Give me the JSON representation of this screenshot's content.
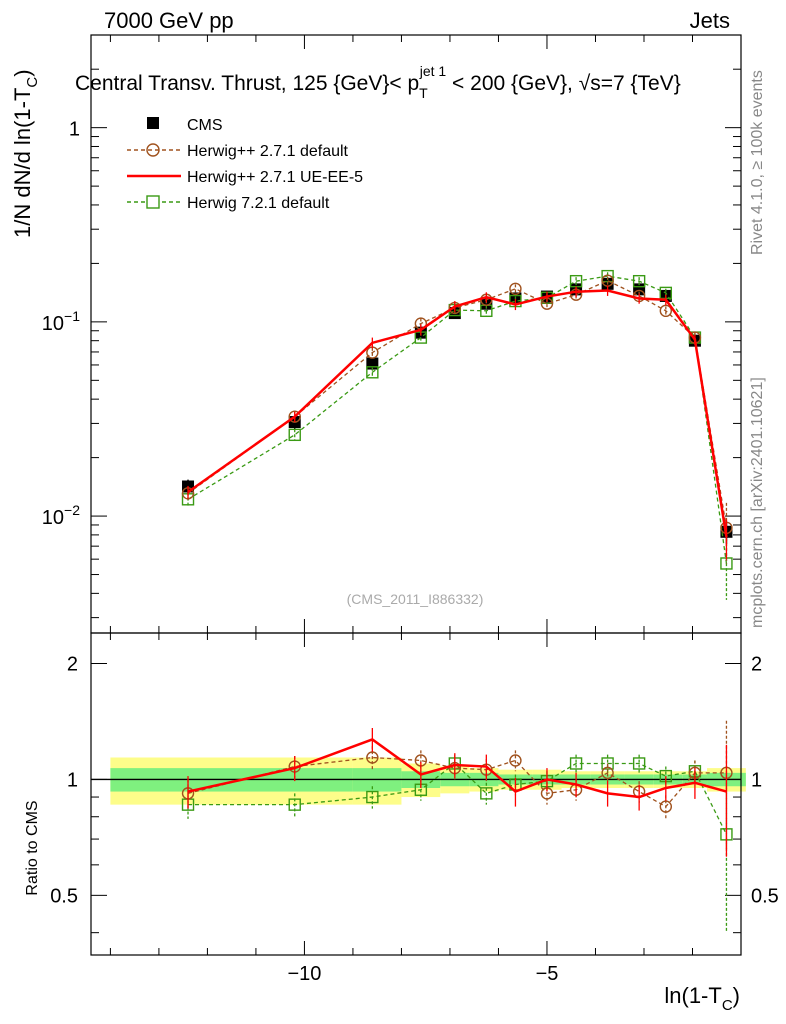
{
  "header": {
    "energy_label": "7000 GeV pp",
    "category_label": "Jets",
    "title_part1": "Central Transv. Thrust, 125 {GeV}< p",
    "title_sup": "jet 1",
    "title_sub": "T",
    "title_part2": " < 200 {GeV}, ",
    "title_sqrt": "√",
    "title_part3": "s=7 {TeV}"
  },
  "side_labels": {
    "rivet": "Rivet 4.1.0, ≥ 100k events",
    "mcplots": "mcplots.cern.ch [arXiv:2401.10621]"
  },
  "watermark": "(CMS_2011_I886332)",
  "axes": {
    "ylabel_main": "1/N   dN/d ln(1-T",
    "ylabel_main_sub": "C",
    "ylabel_main_close": ")",
    "ylabel_ratio": "Ratio to CMS",
    "xlabel": "ln(1-T",
    "xlabel_sub": "C",
    "xlabel_close": ")",
    "main_ticks": [
      {
        "mantissa": "10",
        "exp": "−2",
        "value": 0.01
      },
      {
        "mantissa": "10",
        "exp": "−1",
        "value": 0.1
      },
      {
        "mantissa": "1",
        "exp": "",
        "value": 1
      }
    ],
    "ratio_ticks": [
      {
        "label": "0.5",
        "value": 0.5
      },
      {
        "label": "1",
        "value": 1
      },
      {
        "label": "2",
        "value": 2
      }
    ],
    "x_ticks": [
      {
        "label": "−10",
        "value": -10
      },
      {
        "label": "−5",
        "value": -5
      }
    ]
  },
  "legend": {
    "cms": "CMS",
    "h271_default": "Herwig++ 2.7.1 default",
    "h271_ueee5": "Herwig++ 2.7.1 UE-EE-5",
    "h721_default": "Herwig 7.2.1 default"
  },
  "colors": {
    "cms": "#000000",
    "h271_default": "#a0521e",
    "h271_ueee5": "#ff0000",
    "h721_default": "#3a9a14",
    "band_inner": "#7ff07f",
    "band_outer": "#fdfd8a"
  },
  "chart_data": {
    "type": "line",
    "xlim": [
      -14.4,
      -1.0
    ],
    "ylim_main": [
      0.0025,
      3.0
    ],
    "ylim_ratio": [
      0.35,
      2.4
    ],
    "yscale_main": "log",
    "yscale_ratio": "log",
    "x": [
      -12.4,
      -10.2,
      -8.6,
      -7.6,
      -6.9,
      -6.25,
      -5.65,
      -5.0,
      -4.4,
      -3.75,
      -3.1,
      -2.55,
      -1.95,
      -1.3
    ],
    "series": [
      {
        "name": "CMS",
        "values": [
          0.0142,
          0.0305,
          0.061,
          0.088,
          0.111,
          0.124,
          0.132,
          0.135,
          0.147,
          0.157,
          0.147,
          0.136,
          0.08,
          0.0083
        ],
        "errors": [
          0.0012,
          0.0024,
          0.0045,
          0.006,
          0.007,
          0.008,
          0.008,
          0.008,
          0.008,
          0.009,
          0.009,
          0.008,
          0.005,
          0.0011
        ]
      },
      {
        "name": "Herwig++ 2.7.1 default",
        "values": [
          0.0131,
          0.0325,
          0.0695,
          0.098,
          0.118,
          0.13,
          0.148,
          0.124,
          0.138,
          0.163,
          0.136,
          0.114,
          0.083,
          0.0087
        ],
        "errors": [
          0.001,
          0.002,
          0.004,
          0.006,
          0.007,
          0.007,
          0.008,
          0.007,
          0.007,
          0.008,
          0.007,
          0.006,
          0.005,
          0.003
        ],
        "ratio": [
          0.92,
          1.08,
          1.14,
          1.12,
          1.07,
          1.06,
          1.12,
          0.92,
          0.94,
          1.04,
          0.93,
          0.85,
          1.04,
          1.04
        ],
        "ratio_errors": [
          0.08,
          0.07,
          0.08,
          0.07,
          0.07,
          0.07,
          0.07,
          0.06,
          0.06,
          0.06,
          0.06,
          0.06,
          0.08,
          0.38
        ]
      },
      {
        "name": "Herwig++ 2.7.1 UE-EE-5",
        "values": [
          0.0133,
          0.0325,
          0.078,
          0.091,
          0.12,
          0.134,
          0.123,
          0.135,
          0.143,
          0.145,
          0.132,
          0.13,
          0.081,
          0.0078
        ],
        "errors": [
          0.001,
          0.002,
          0.005,
          0.006,
          0.008,
          0.008,
          0.008,
          0.008,
          0.009,
          0.009,
          0.008,
          0.008,
          0.005,
          0.0018
        ],
        "ratio": [
          0.93,
          1.07,
          1.27,
          1.03,
          1.09,
          1.08,
          0.93,
          1.0,
          0.97,
          0.92,
          0.9,
          0.95,
          0.98,
          0.93
        ],
        "ratio_errors": [
          0.09,
          0.08,
          0.09,
          0.08,
          0.08,
          0.08,
          0.08,
          0.07,
          0.07,
          0.07,
          0.07,
          0.07,
          0.09,
          0.3
        ]
      },
      {
        "name": "Herwig 7.2.1 default",
        "values": [
          0.0122,
          0.0262,
          0.055,
          0.083,
          0.115,
          0.114,
          0.128,
          0.133,
          0.162,
          0.172,
          0.162,
          0.141,
          0.083,
          0.0057
        ],
        "errors": [
          0.001,
          0.0018,
          0.003,
          0.005,
          0.007,
          0.007,
          0.007,
          0.007,
          0.008,
          0.008,
          0.008,
          0.007,
          0.005,
          0.002
        ],
        "ratio": [
          0.86,
          0.86,
          0.9,
          0.94,
          1.1,
          0.92,
          0.97,
          0.99,
          1.1,
          1.1,
          1.1,
          1.02,
          1.05,
          0.72
        ],
        "ratio_errors": [
          0.07,
          0.06,
          0.06,
          0.06,
          0.06,
          0.06,
          0.06,
          0.06,
          0.06,
          0.06,
          0.06,
          0.06,
          0.07,
          0.32
        ]
      }
    ],
    "cms_band": {
      "x_edges": [
        -14.0,
        -9.0,
        -8.0,
        -7.2,
        -6.6,
        -6.0,
        -5.3,
        -4.7,
        -4.1,
        -3.4,
        -2.8,
        -2.2,
        -1.7,
        -0.9
      ],
      "inner": [
        0.07,
        0.07,
        0.05,
        0.04,
        0.04,
        0.03,
        0.03,
        0.03,
        0.03,
        0.03,
        0.03,
        0.03,
        0.04,
        0.05
      ],
      "outer": [
        0.14,
        0.14,
        0.1,
        0.08,
        0.07,
        0.06,
        0.06,
        0.05,
        0.05,
        0.05,
        0.05,
        0.05,
        0.07,
        0.08
      ]
    }
  }
}
